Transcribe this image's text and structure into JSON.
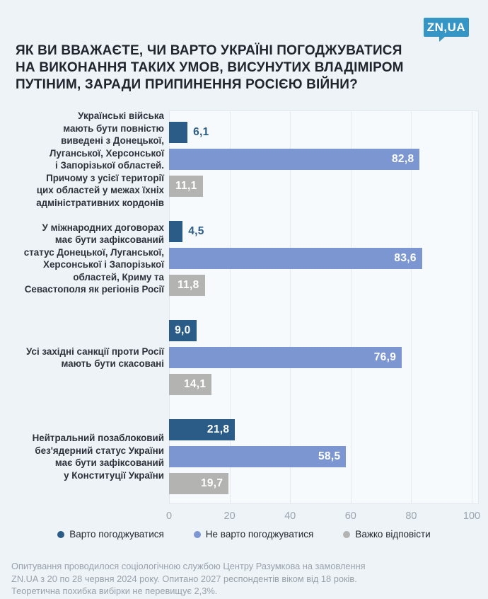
{
  "logo": {
    "text": "ZN,UA",
    "color": "#3596c5"
  },
  "title": "ЯК ВИ ВВАЖАЄТЕ, ЧИ ВАРТО УКРАЇНІ ПОГОДЖУВАТИСЯ\nНА ВИКОНАННЯ ТАКИХ УМОВ, ВИСУНУТИХ ВЛАДІМІРОМ\nПУТІНИМ, ЗАРАДИ ПРИПИНЕННЯ РОСІЄЮ ВІЙНИ?",
  "chart_data": {
    "type": "bar",
    "orientation": "horizontal",
    "categories": [
      "Українські війська\nмають бути повністю\nвиведені з Донецької,\nЛуганської, Херсонської\nі Запорізької областей.\nПричому з усієї території\nцих областей у межах їхніх\nадміністративних кордонів",
      "У міжнародних договорах\nмає бути зафіксований\nстатус Донецької, Луганської,\nХерсонської і Запорізької\nобластей, Криму та\nСевастополя як регіонів Росії",
      "Усі західні санкції проти Росії\nмають бути скасовані",
      "Нейтральний позаблоковий\nбез'ядерний статус України\nмає бути зафіксований\nу Конституції України"
    ],
    "series": [
      {
        "name": "Варто погоджуватися",
        "color": "#2b5c87",
        "values": [
          6.1,
          4.5,
          9.0,
          21.8
        ],
        "labels": [
          "6,1",
          "4,5",
          "9,0",
          "21,8"
        ]
      },
      {
        "name": "Не варто погоджуватися",
        "color": "#7b96d1",
        "values": [
          82.8,
          83.6,
          76.9,
          58.5
        ],
        "labels": [
          "82,8",
          "83,6",
          "76,9",
          "58,5"
        ]
      },
      {
        "name": "Важко відповісти",
        "color": "#b3b4b1",
        "values": [
          11.1,
          11.8,
          14.1,
          19.7
        ],
        "labels": [
          "11,1",
          "11,8",
          "14,1",
          "19,7"
        ]
      }
    ],
    "xlim": [
      0,
      100
    ],
    "x_ticks": [
      0,
      20,
      40,
      60,
      80,
      100
    ],
    "grid": true,
    "legend_position": "bottom"
  },
  "footer": {
    "text": "Опитування проводилося  соціологічною службою Центру Разумкова на замовлення\nZN.UA з 20 по 28 червня 2024 року. Опитано 2027 респондентів віком від 18 років.\nТеоретична похибка вибірки не перевищує 2,3%."
  }
}
